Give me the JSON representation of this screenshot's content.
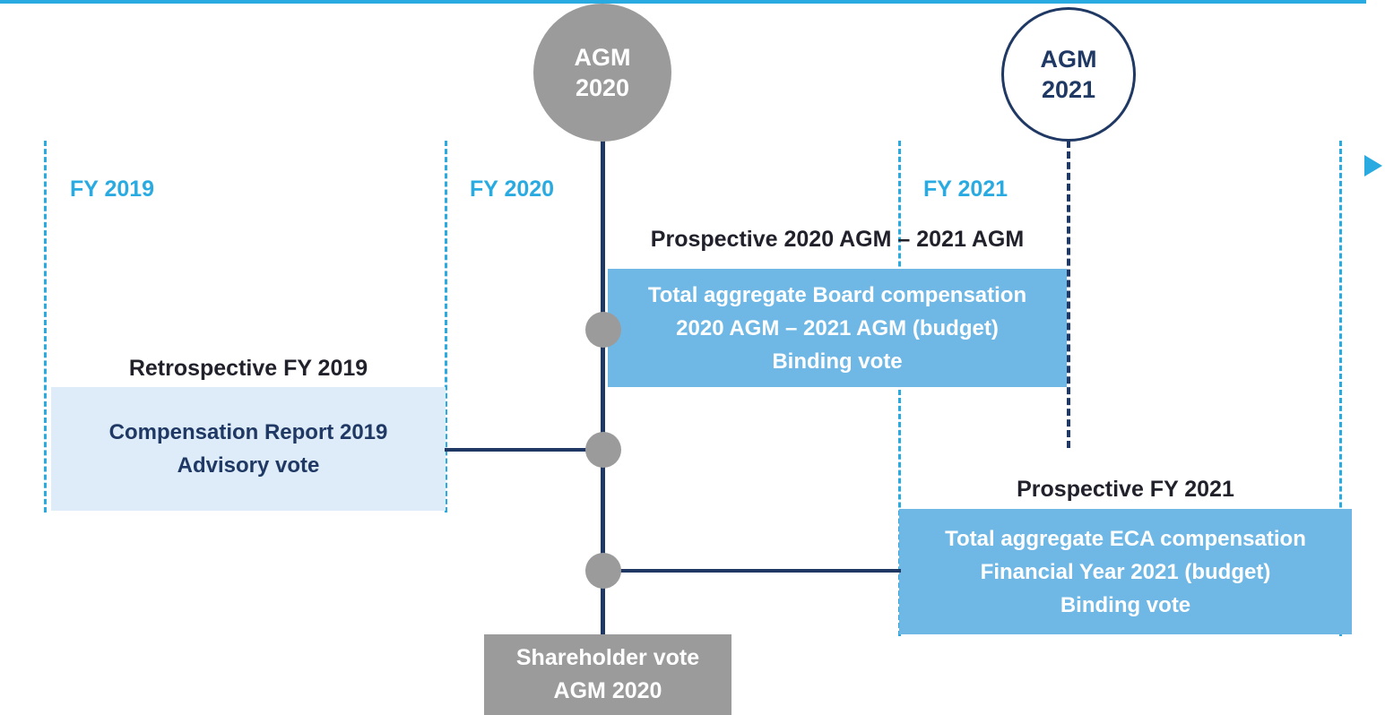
{
  "timeline": {
    "fy_labels": [
      {
        "label": "FY 2019"
      },
      {
        "label": "FY 2020"
      },
      {
        "label": "FY 2021"
      }
    ]
  },
  "agm_2020": {
    "line1": "AGM",
    "line2": "2020"
  },
  "agm_2021": {
    "line1": "AGM",
    "line2": "2021"
  },
  "board_section": {
    "title": "Prospective 2020 AGM – 2021 AGM",
    "box_lines": [
      "Total aggregate Board compensation",
      "2020 AGM – 2021 AGM (budget)",
      "Binding vote"
    ]
  },
  "report_section": {
    "title": "Retrospective FY 2019",
    "box_lines": [
      "Compensation Report 2019",
      "Advisory vote"
    ]
  },
  "eca_section": {
    "title": "Prospective FY 2021",
    "box_lines": [
      "Total aggregate ECA compensation",
      "Financial Year 2021 (budget)",
      "Binding vote"
    ]
  },
  "shareholder_box": {
    "line1": "Shareholder vote",
    "line2": "AGM 2020"
  },
  "colors": {
    "light_blue": "#29abe2",
    "navy": "#1f3864",
    "gray": "#9b9b9b",
    "medium_blue": "#6fb8e6",
    "pale_blue": "#ddecf8"
  }
}
